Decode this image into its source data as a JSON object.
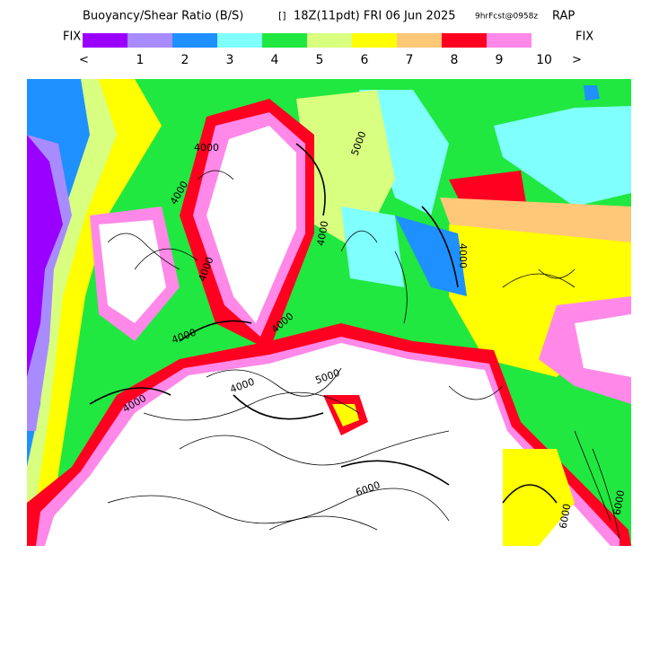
{
  "header": {
    "title": "Buoyancy/Shear Ratio (B/S)",
    "box": "[]",
    "valid": "18Z(11pdt) FRI 06 Jun 2025",
    "forecast": "9hrFcst@0958z",
    "model": "RAP"
  },
  "legend": {
    "left_label": "FIX",
    "right_label": "FIX",
    "low_label": "<",
    "high_label": ">",
    "colors": [
      "#9a00ff",
      "#a88cff",
      "#1e90ff",
      "#80ffff",
      "#20e840",
      "#d8ff80",
      "#ffff00",
      "#ffc878",
      "#ff0020",
      "#ff88e8"
    ],
    "labels": [
      "1",
      "2",
      "3",
      "4",
      "5",
      "6",
      "7",
      "8",
      "9",
      "10"
    ]
  },
  "contour_labels": [
    "4000",
    "4000",
    "4000",
    "4000",
    "4000",
    "4000",
    "4000",
    "4000",
    "4000",
    "5000",
    "5000",
    "6000",
    "6000",
    "6000"
  ]
}
